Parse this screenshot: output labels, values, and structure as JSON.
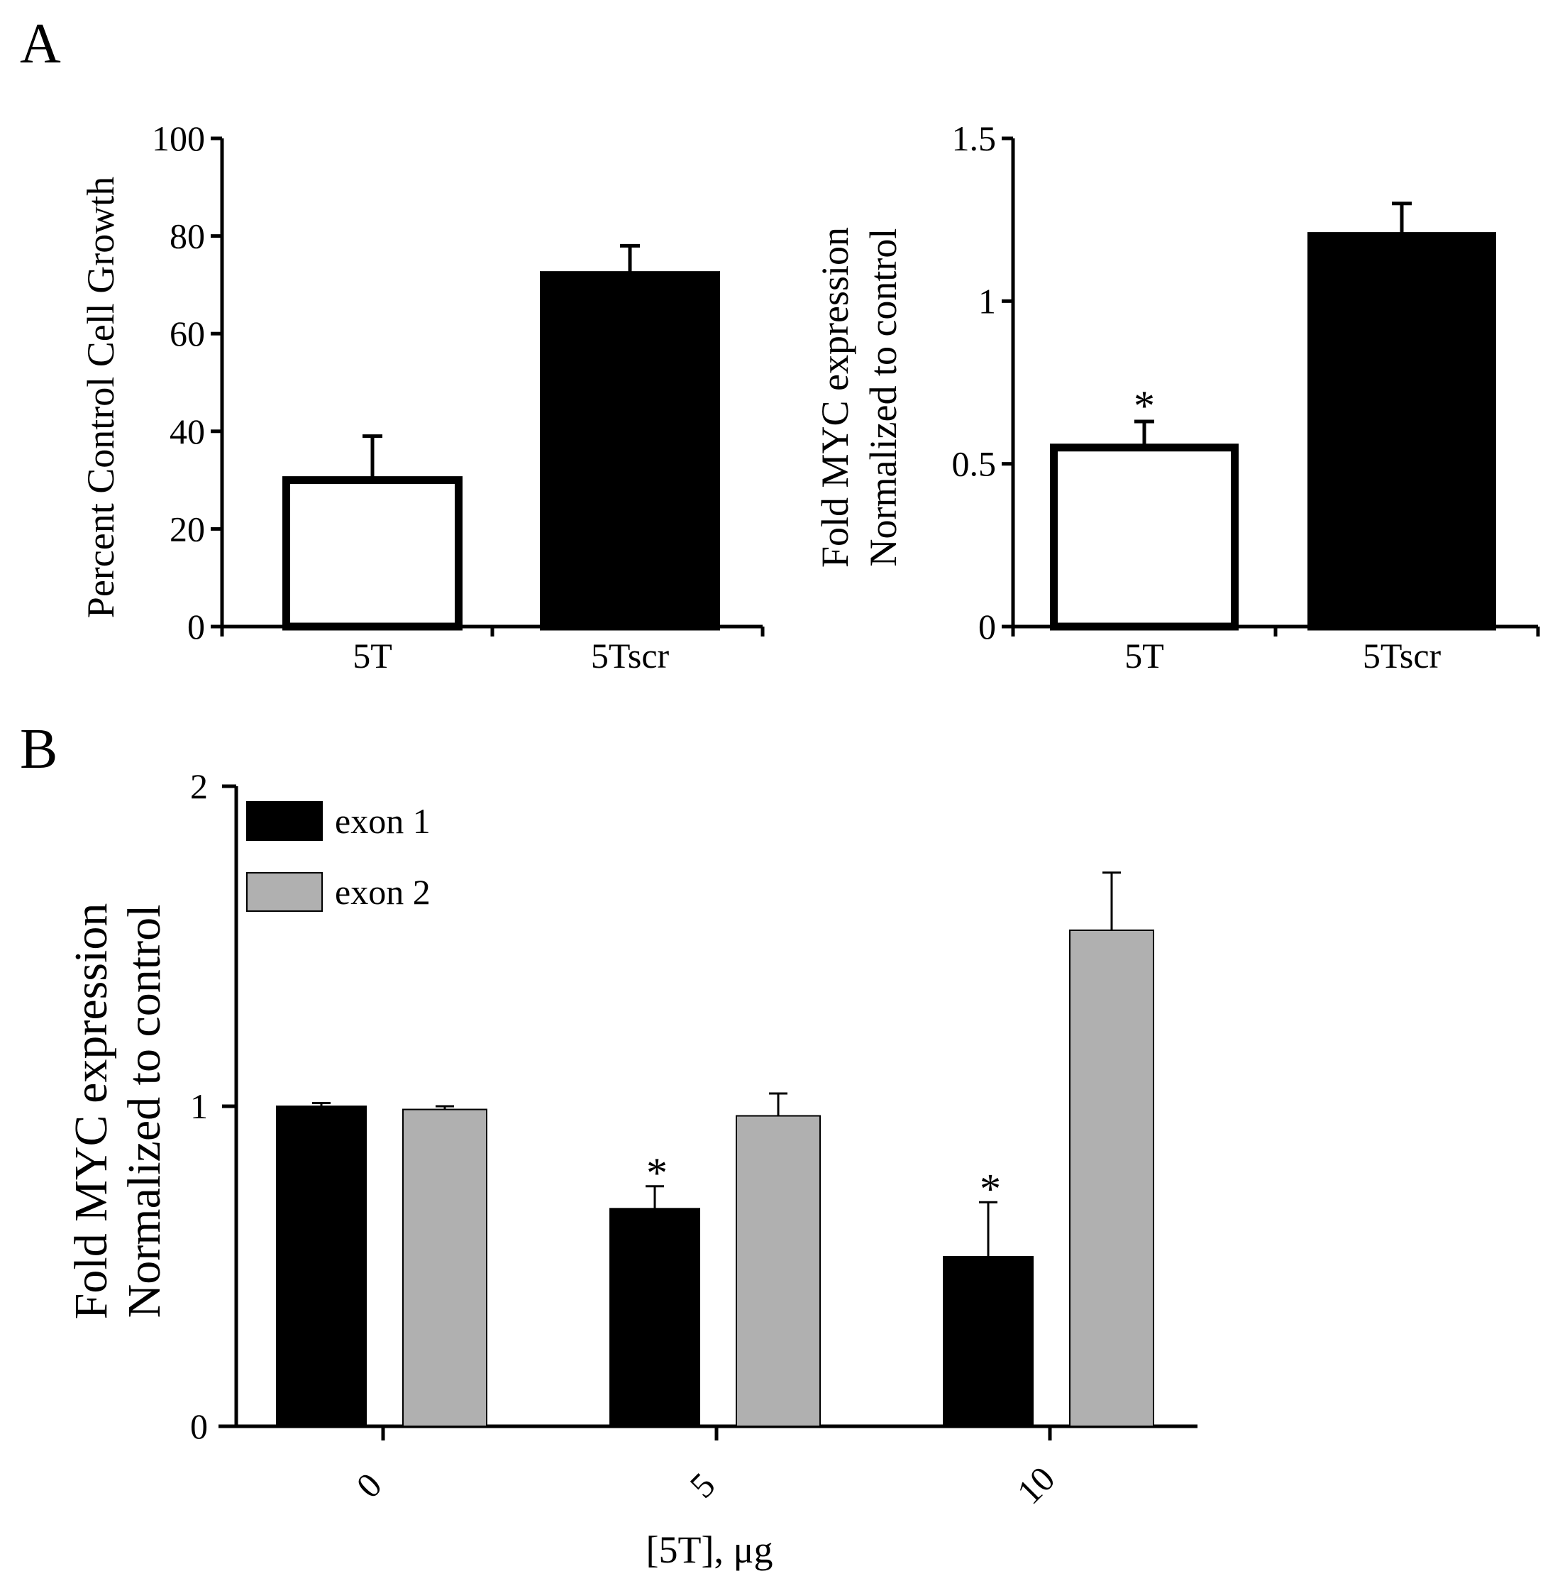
{
  "panel_labels": [
    "A",
    "B"
  ],
  "chart_data": [
    {
      "type": "bar",
      "panel": "A",
      "categories": [
        "5T",
        "5Tscr"
      ],
      "values": [
        30,
        72
      ],
      "errors": [
        9,
        6
      ],
      "bar_fill": [
        "#ffffff",
        "#000000"
      ],
      "significance": [
        "",
        ""
      ],
      "title": "",
      "xlabel": "",
      "ylabel": "Percent Control Cell Growth",
      "ylim": [
        0,
        100
      ],
      "yticks": [
        "0",
        "20",
        "40",
        "60",
        "80",
        "100"
      ]
    },
    {
      "type": "bar",
      "panel": "A",
      "categories": [
        "5T",
        "5Tscr"
      ],
      "values": [
        0.55,
        1.2
      ],
      "errors": [
        0.08,
        0.1
      ],
      "bar_fill": [
        "#ffffff",
        "#000000"
      ],
      "significance": [
        "*",
        ""
      ],
      "title": "",
      "xlabel": "",
      "ylabel": [
        "Fold MYC expression",
        "Normalized to control"
      ],
      "ylim": [
        0,
        1.5
      ],
      "yticks": [
        "0",
        "0.5",
        "1",
        "1.5"
      ]
    },
    {
      "type": "bar",
      "panel": "B",
      "categories": [
        "0",
        "5",
        "10"
      ],
      "series": [
        {
          "name": "exon 1",
          "color": "#000000",
          "values": [
            1.0,
            0.68,
            0.53
          ],
          "errors": [
            0.01,
            0.07,
            0.17
          ],
          "significance": [
            "",
            "*",
            "*"
          ]
        },
        {
          "name": "exon 2",
          "color": "#b0b0b0",
          "values": [
            0.99,
            0.97,
            1.55
          ],
          "errors": [
            0.01,
            0.07,
            0.18
          ],
          "significance": [
            "",
            "",
            ""
          ]
        }
      ],
      "title": "",
      "xlabel": "[5T], μg",
      "ylabel": [
        "Fold MYC expression",
        "Normalized to control"
      ],
      "ylim": [
        0,
        2
      ],
      "yticks": [
        "0",
        "1",
        "2"
      ],
      "legend_position": "top-left"
    }
  ]
}
